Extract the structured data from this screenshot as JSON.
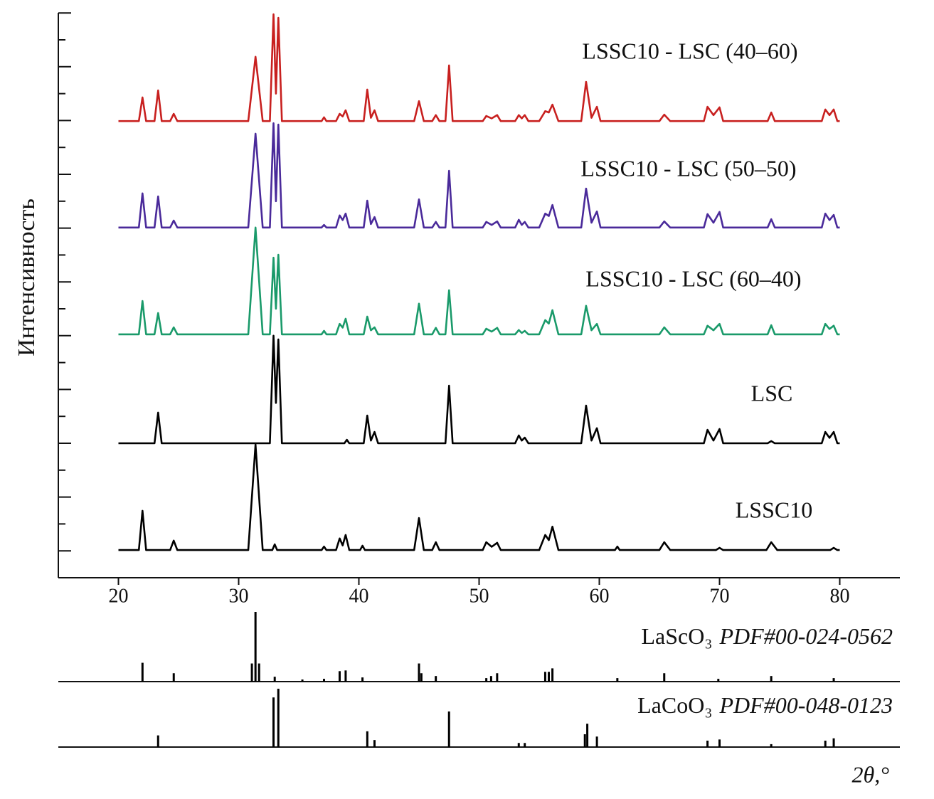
{
  "chart_data": [
    {
      "type": "line",
      "x_label": "2θ,°",
      "y_label": "Интенсивность",
      "xlim": [
        15,
        85
      ],
      "xticks": [
        20,
        30,
        40,
        50,
        60,
        70,
        80
      ],
      "ylim": [
        0,
        21
      ],
      "yticks": [
        1,
        2,
        3,
        4,
        5,
        6,
        7,
        8,
        9,
        10,
        11,
        12,
        13,
        14,
        15,
        16,
        17,
        18,
        19,
        20,
        21
      ],
      "series": [
        {
          "name": "LSSC10 - LSC (40–60)",
          "color": "#c8201f",
          "x": [
            20,
            21.7,
            22.0,
            22.3,
            23.0,
            23.3,
            23.6,
            24.3,
            24.6,
            24.9,
            30.8,
            31.4,
            32.0,
            32.6,
            32.9,
            33.1,
            33.3,
            33.6,
            36.9,
            37.1,
            37.3,
            38.1,
            38.4,
            38.65,
            38.9,
            39.2,
            40.4,
            40.7,
            41.0,
            41.3,
            41.6,
            44.6,
            45.0,
            45.4,
            46.1,
            46.4,
            46.7,
            47.2,
            47.5,
            47.8,
            50.3,
            50.6,
            51.05,
            51.5,
            51.8,
            53.0,
            53.3,
            53.55,
            53.8,
            54.1,
            55.0,
            55.5,
            55.8,
            56.1,
            56.6,
            58.5,
            58.9,
            59.35,
            59.8,
            60.1,
            65.0,
            65.4,
            65.9,
            68.7,
            69.0,
            69.5,
            70.0,
            70.3,
            74.0,
            74.3,
            74.6,
            78.5,
            78.8,
            79.15,
            79.5,
            79.8,
            80
          ],
          "values": [
            16.98,
            16.98,
            17.86,
            16.98,
            16.98,
            18.12,
            16.98,
            16.98,
            17.25,
            16.98,
            16.98,
            19.37,
            16.98,
            16.98,
            20.95,
            18.0,
            20.82,
            16.98,
            16.98,
            17.12,
            16.98,
            16.98,
            17.25,
            17.15,
            17.38,
            16.98,
            16.98,
            18.15,
            17.1,
            17.38,
            16.98,
            16.98,
            17.72,
            16.98,
            16.98,
            17.2,
            16.98,
            16.98,
            19.05,
            16.98,
            16.98,
            17.17,
            17.08,
            17.2,
            16.98,
            16.98,
            17.2,
            17.08,
            17.2,
            16.98,
            16.98,
            17.35,
            17.3,
            17.59,
            16.98,
            16.98,
            18.44,
            17.1,
            17.51,
            16.98,
            16.98,
            17.22,
            16.98,
            16.98,
            17.51,
            17.2,
            17.49,
            16.98,
            16.98,
            17.3,
            16.98,
            16.98,
            17.41,
            17.2,
            17.41,
            16.98,
            16.98
          ]
        },
        {
          "name": "LSSC10 - LSC (50–50)",
          "color": "#4a2a9a",
          "x": [
            20,
            21.7,
            22.0,
            22.3,
            23.0,
            23.3,
            23.6,
            24.3,
            24.6,
            24.9,
            30.8,
            31.4,
            32.0,
            32.6,
            32.9,
            33.1,
            33.3,
            33.6,
            36.9,
            37.1,
            37.3,
            38.1,
            38.4,
            38.65,
            38.9,
            39.2,
            40.4,
            40.7,
            41.0,
            41.3,
            41.6,
            44.6,
            45.0,
            45.4,
            46.1,
            46.4,
            46.7,
            47.2,
            47.5,
            47.8,
            50.3,
            50.6,
            51.05,
            51.5,
            51.8,
            53.0,
            53.3,
            53.55,
            53.8,
            54.1,
            55.0,
            55.5,
            55.8,
            56.1,
            56.6,
            58.5,
            58.9,
            59.35,
            59.8,
            60.1,
            65.0,
            65.4,
            65.9,
            68.7,
            69.0,
            69.5,
            70.0,
            70.3,
            74.0,
            74.3,
            74.6,
            78.5,
            78.8,
            79.15,
            79.5,
            79.8,
            80
          ],
          "values": [
            13.02,
            13.02,
            14.29,
            13.02,
            13.02,
            14.18,
            13.02,
            13.02,
            13.28,
            13.02,
            13.02,
            16.51,
            13.02,
            13.02,
            16.9,
            14.0,
            16.85,
            13.02,
            13.02,
            13.12,
            13.02,
            13.02,
            13.47,
            13.3,
            13.54,
            13.02,
            13.02,
            14.02,
            13.15,
            13.41,
            13.02,
            13.02,
            14.07,
            13.02,
            13.02,
            13.23,
            13.02,
            13.02,
            15.13,
            13.02,
            13.02,
            13.23,
            13.12,
            13.25,
            13.02,
            13.02,
            13.31,
            13.12,
            13.23,
            13.02,
            13.02,
            13.54,
            13.45,
            13.86,
            13.02,
            13.02,
            14.47,
            13.2,
            13.62,
            13.02,
            13.02,
            13.25,
            13.02,
            13.02,
            13.52,
            13.2,
            13.6,
            13.02,
            13.02,
            13.33,
            13.02,
            13.02,
            13.54,
            13.3,
            13.49,
            13.02,
            13.02
          ]
        },
        {
          "name": "LSSC10 - LSC (60–40)",
          "color": "#1a9a6a",
          "x": [
            20,
            21.7,
            22.0,
            22.3,
            23.0,
            23.3,
            23.6,
            24.3,
            24.6,
            24.9,
            30.8,
            31.4,
            32.0,
            32.6,
            32.9,
            33.1,
            33.3,
            33.6,
            36.9,
            37.1,
            37.3,
            38.1,
            38.4,
            38.65,
            38.9,
            39.2,
            40.4,
            40.7,
            41.0,
            41.3,
            41.6,
            44.6,
            45.0,
            45.4,
            46.1,
            46.4,
            46.7,
            47.2,
            47.5,
            47.8,
            50.3,
            50.6,
            51.05,
            51.5,
            51.8,
            53.0,
            53.3,
            53.55,
            53.8,
            54.1,
            55.0,
            55.5,
            55.8,
            56.1,
            56.6,
            58.5,
            58.9,
            59.35,
            59.8,
            60.1,
            65.0,
            65.4,
            65.9,
            68.7,
            69.0,
            69.5,
            70.0,
            70.3,
            74.0,
            74.3,
            74.6,
            78.5,
            78.8,
            79.15,
            79.5,
            79.8,
            80
          ],
          "values": [
            9.05,
            9.05,
            10.29,
            9.05,
            9.05,
            9.84,
            9.05,
            9.05,
            9.31,
            9.05,
            9.05,
            13.02,
            9.05,
            9.05,
            11.9,
            10.0,
            12.01,
            9.05,
            9.05,
            9.18,
            9.05,
            9.05,
            9.44,
            9.3,
            9.63,
            9.05,
            9.05,
            9.71,
            9.2,
            9.31,
            9.05,
            9.05,
            10.19,
            9.05,
            9.05,
            9.29,
            9.05,
            9.05,
            10.69,
            9.05,
            9.05,
            9.26,
            9.15,
            9.29,
            9.05,
            9.05,
            9.21,
            9.1,
            9.18,
            9.05,
            9.05,
            9.58,
            9.45,
            9.95,
            9.05,
            9.05,
            10.11,
            9.2,
            9.44,
            9.05,
            9.05,
            9.31,
            9.05,
            9.05,
            9.37,
            9.2,
            9.44,
            9.05,
            9.05,
            9.39,
            9.05,
            9.05,
            9.44,
            9.25,
            9.37,
            9.05,
            9.05
          ]
        },
        {
          "name": "LSC",
          "color": "#000000",
          "x": [
            20,
            23.0,
            23.3,
            23.6,
            32.6,
            32.9,
            33.1,
            33.3,
            33.6,
            38.8,
            39.0,
            39.2,
            40.4,
            40.7,
            41.0,
            41.3,
            41.6,
            47.2,
            47.5,
            47.8,
            53.0,
            53.3,
            53.55,
            53.8,
            54.1,
            58.5,
            58.9,
            59.35,
            59.8,
            60.1,
            68.7,
            69.0,
            69.5,
            70.0,
            70.3,
            74.0,
            74.3,
            74.6,
            78.5,
            78.8,
            79.15,
            79.5,
            79.8,
            80
          ],
          "values": [
            5.0,
            5.0,
            6.14,
            5.0,
            5.0,
            9.0,
            6.5,
            8.86,
            5.0,
            5.0,
            5.13,
            5.0,
            5.0,
            6.03,
            5.1,
            5.42,
            5.0,
            5.0,
            7.14,
            5.0,
            5.0,
            5.29,
            5.1,
            5.21,
            5.0,
            5.0,
            6.4,
            5.1,
            5.56,
            5.0,
            5.0,
            5.5,
            5.1,
            5.53,
            5.0,
            5.0,
            5.08,
            5.0,
            5.0,
            5.42,
            5.2,
            5.42,
            5.0,
            5.0
          ]
        },
        {
          "name": "LSSC10",
          "color": "#000000",
          "x": [
            20,
            21.7,
            22.0,
            22.3,
            24.3,
            24.6,
            24.9,
            30.8,
            31.4,
            32.0,
            32.8,
            33.0,
            33.2,
            36.9,
            37.1,
            37.3,
            38.1,
            38.4,
            38.65,
            38.9,
            39.2,
            40.1,
            40.3,
            40.5,
            44.6,
            45.0,
            45.4,
            46.1,
            46.4,
            46.7,
            50.3,
            50.6,
            51.05,
            51.5,
            51.8,
            55.0,
            55.5,
            55.8,
            56.1,
            56.6,
            61.3,
            61.5,
            61.7,
            65.0,
            65.4,
            65.9,
            69.7,
            70.0,
            70.3,
            73.9,
            74.3,
            74.8,
            79.2,
            79.5,
            79.8,
            80
          ],
          "values": [
            1.03,
            1.03,
            2.49,
            1.03,
            1.03,
            1.38,
            1.03,
            1.03,
            4.95,
            1.03,
            1.03,
            1.24,
            1.03,
            1.03,
            1.16,
            1.03,
            1.03,
            1.46,
            1.2,
            1.59,
            1.03,
            1.03,
            1.19,
            1.03,
            1.03,
            2.22,
            1.03,
            1.03,
            1.32,
            1.03,
            1.03,
            1.32,
            1.15,
            1.3,
            1.03,
            1.03,
            1.59,
            1.4,
            1.9,
            1.03,
            1.03,
            1.16,
            1.03,
            1.03,
            1.32,
            1.03,
            1.03,
            1.11,
            1.03,
            1.03,
            1.32,
            1.03,
            1.03,
            1.11,
            1.03,
            1.03
          ]
        }
      ]
    },
    {
      "type": "stick",
      "xlim": [
        15,
        85
      ],
      "ylim": [
        0,
        100
      ],
      "series": [
        {
          "name": "LaScO₃",
          "card": "PDF#00-024-0562",
          "color": "#000000",
          "x": [
            22.0,
            24.6,
            31.1,
            31.4,
            31.7,
            33.0,
            35.3,
            37.1,
            38.4,
            38.9,
            40.3,
            45.0,
            45.2,
            46.4,
            50.6,
            51.0,
            51.5,
            55.5,
            55.8,
            56.1,
            61.5,
            65.4,
            69.9,
            74.3,
            79.5
          ],
          "values": [
            27,
            12,
            26,
            100,
            26,
            7,
            3,
            4,
            15,
            16,
            6,
            26,
            12,
            8,
            5,
            8,
            12,
            14,
            14,
            19,
            5,
            12,
            4,
            8,
            5
          ]
        }
      ]
    },
    {
      "type": "stick",
      "xlim": [
        15,
        85
      ],
      "ylim": [
        0,
        100
      ],
      "series": [
        {
          "name": "LaCoO₃",
          "card": "PDF#00-048-0123",
          "color": "#000000",
          "x": [
            23.3,
            32.9,
            33.3,
            40.7,
            41.3,
            47.5,
            53.3,
            53.8,
            58.8,
            59.0,
            59.8,
            69.0,
            70.0,
            74.3,
            78.8,
            79.5
          ],
          "values": [
            20,
            85,
            100,
            27,
            12,
            61,
            7,
            7,
            22,
            40,
            18,
            11,
            13,
            5,
            11,
            15
          ]
        }
      ]
    }
  ]
}
